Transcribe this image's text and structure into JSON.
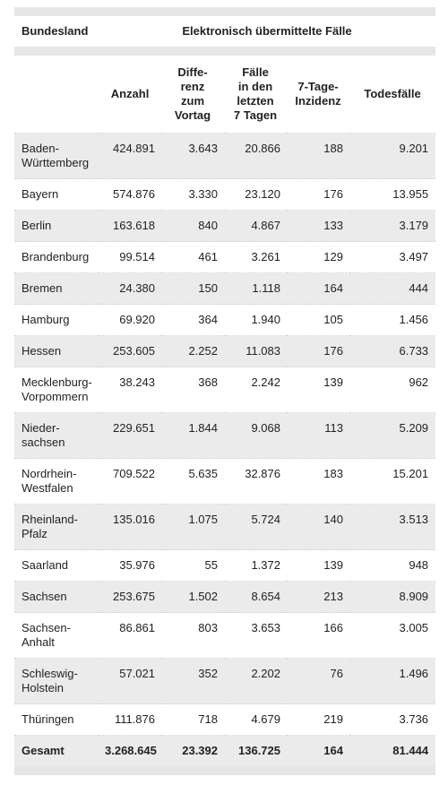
{
  "table": {
    "header": [
      "Bundesland",
      "Elektronisch übermittelte Fälle"
    ],
    "columns": [
      "",
      "Anzahl",
      "Diffe-\nrenz\nzum\nVortag",
      "Fälle\nin den\nletzten\n7 Tagen",
      "7-Tage-\nInzidenz",
      "Todesfälle"
    ],
    "rows": [
      [
        "Baden-\nWürttemberg",
        "424.891",
        "3.643",
        "20.866",
        "188",
        "9.201"
      ],
      [
        "Bayern",
        "574.876",
        "3.330",
        "23.120",
        "176",
        "13.955"
      ],
      [
        "Berlin",
        "163.618",
        "840",
        "4.867",
        "133",
        "3.179"
      ],
      [
        "Brandenburg",
        "99.514",
        "461",
        "3.261",
        "129",
        "3.497"
      ],
      [
        "Bremen",
        "24.380",
        "150",
        "1.118",
        "164",
        "444"
      ],
      [
        "Hamburg",
        "69.920",
        "364",
        "1.940",
        "105",
        "1.456"
      ],
      [
        "Hessen",
        "253.605",
        "2.252",
        "11.083",
        "176",
        "6.733"
      ],
      [
        "Mecklenburg-\nVorpommern",
        "38.243",
        "368",
        "2.242",
        "139",
        "962"
      ],
      [
        "Nieder-\nsachsen",
        "229.651",
        "1.844",
        "9.068",
        "113",
        "5.209"
      ],
      [
        "Nordrhein-\nWestfalen",
        "709.522",
        "5.635",
        "32.876",
        "183",
        "15.201"
      ],
      [
        "Rheinland-\nPfalz",
        "135.016",
        "1.075",
        "5.724",
        "140",
        "3.513"
      ],
      [
        "Saarland",
        "35.976",
        "55",
        "1.372",
        "139",
        "948"
      ],
      [
        "Sachsen",
        "253.675",
        "1.502",
        "8.654",
        "213",
        "8.909"
      ],
      [
        "Sachsen-\nAnhalt",
        "86.861",
        "803",
        "3.653",
        "166",
        "3.005"
      ],
      [
        "Schleswig-\nHolstein",
        "57.021",
        "352",
        "2.202",
        "76",
        "1.496"
      ],
      [
        "Thüringen",
        "111.876",
        "718",
        "4.679",
        "219",
        "3.736"
      ]
    ],
    "total": [
      "Gesamt",
      "3.268.645",
      "23.392",
      "136.725",
      "164",
      "81.444"
    ]
  }
}
